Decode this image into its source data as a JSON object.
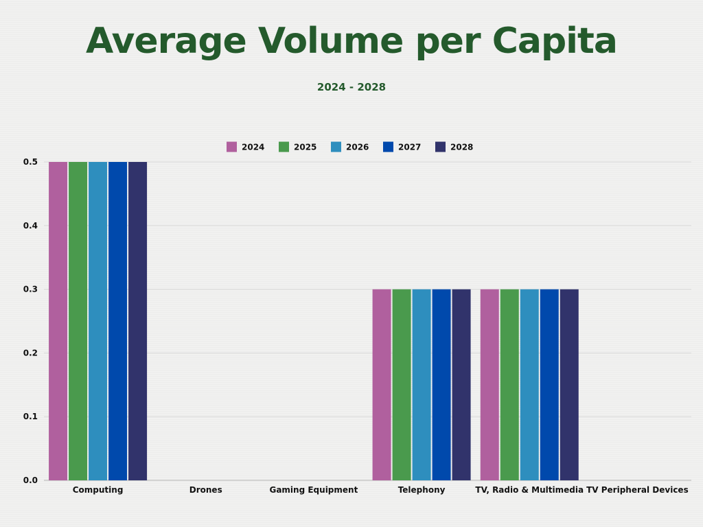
{
  "chart_data": {
    "type": "bar",
    "title": "Average Volume per Capita",
    "subtitle": "2024 - 2028",
    "categories": [
      "Computing",
      "Drones",
      "Gaming Equipment",
      "Telephony",
      "TV, Radio & Multimedia",
      "TV Peripheral Devices"
    ],
    "series": [
      {
        "name": "2024",
        "color": "#b0609e",
        "values": [
          0.5,
          0,
          0,
          0.3,
          0.3,
          0
        ]
      },
      {
        "name": "2025",
        "color": "#4a9a4d",
        "values": [
          0.5,
          0,
          0,
          0.3,
          0.3,
          0
        ]
      },
      {
        "name": "2026",
        "color": "#2e8ebe",
        "values": [
          0.5,
          0,
          0,
          0.3,
          0.3,
          0
        ]
      },
      {
        "name": "2027",
        "color": "#0049ac",
        "values": [
          0.5,
          0,
          0,
          0.3,
          0.3,
          0
        ]
      },
      {
        "name": "2028",
        "color": "#31336b",
        "values": [
          0.5,
          0,
          0,
          0.3,
          0.3,
          0
        ]
      }
    ],
    "yticks": [
      "0.0",
      "0.1",
      "0.2",
      "0.3",
      "0.4",
      "0.5"
    ],
    "ylim": [
      0,
      0.5
    ],
    "xlabel": "",
    "ylabel": "",
    "grid": true,
    "legend_position": "top-center",
    "title_color": "#245a2c"
  }
}
